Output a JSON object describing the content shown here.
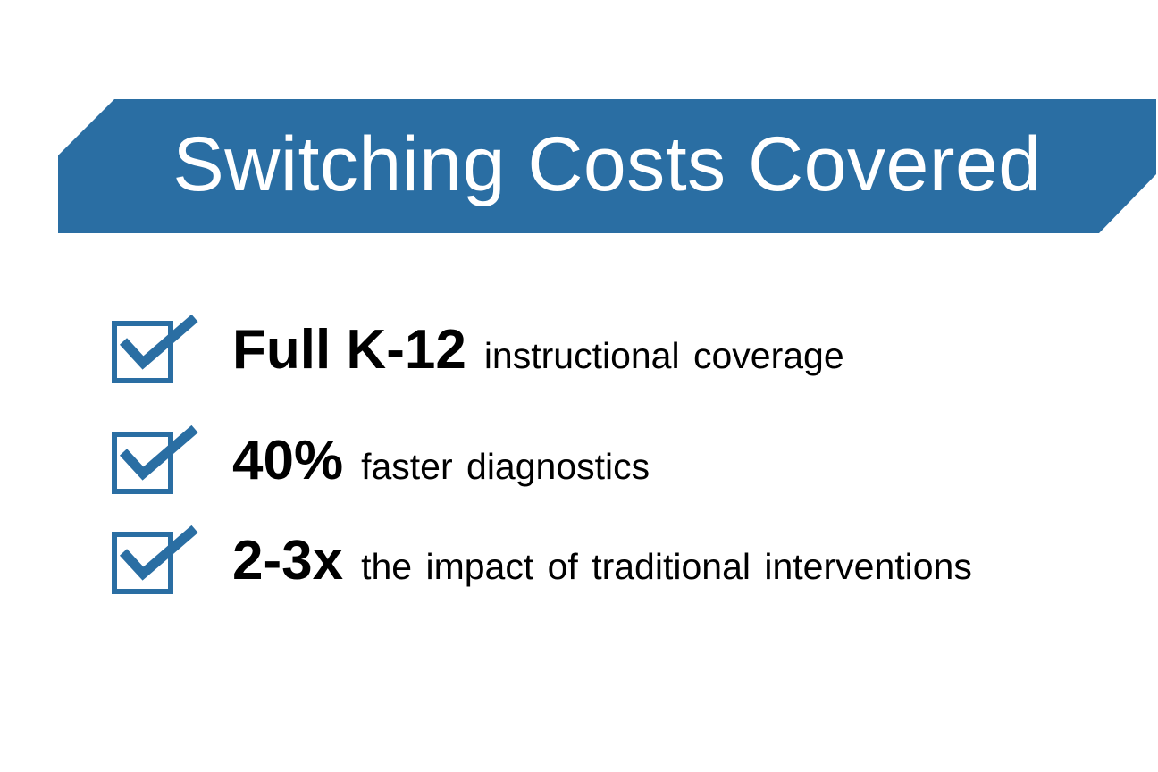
{
  "slide": {
    "title": "Switching Costs Covered",
    "accent_color": "#2a6ea3",
    "bullets": [
      {
        "bold": "Full K-12",
        "text": "instructional coverage",
        "icon": "checkbox-checked-icon"
      },
      {
        "bold": "40%",
        "text": "faster diagnostics",
        "icon": "checkbox-checked-icon"
      },
      {
        "bold": "2-3x",
        "text": "the impact of traditional interventions",
        "icon": "checkbox-checked-icon"
      }
    ]
  }
}
